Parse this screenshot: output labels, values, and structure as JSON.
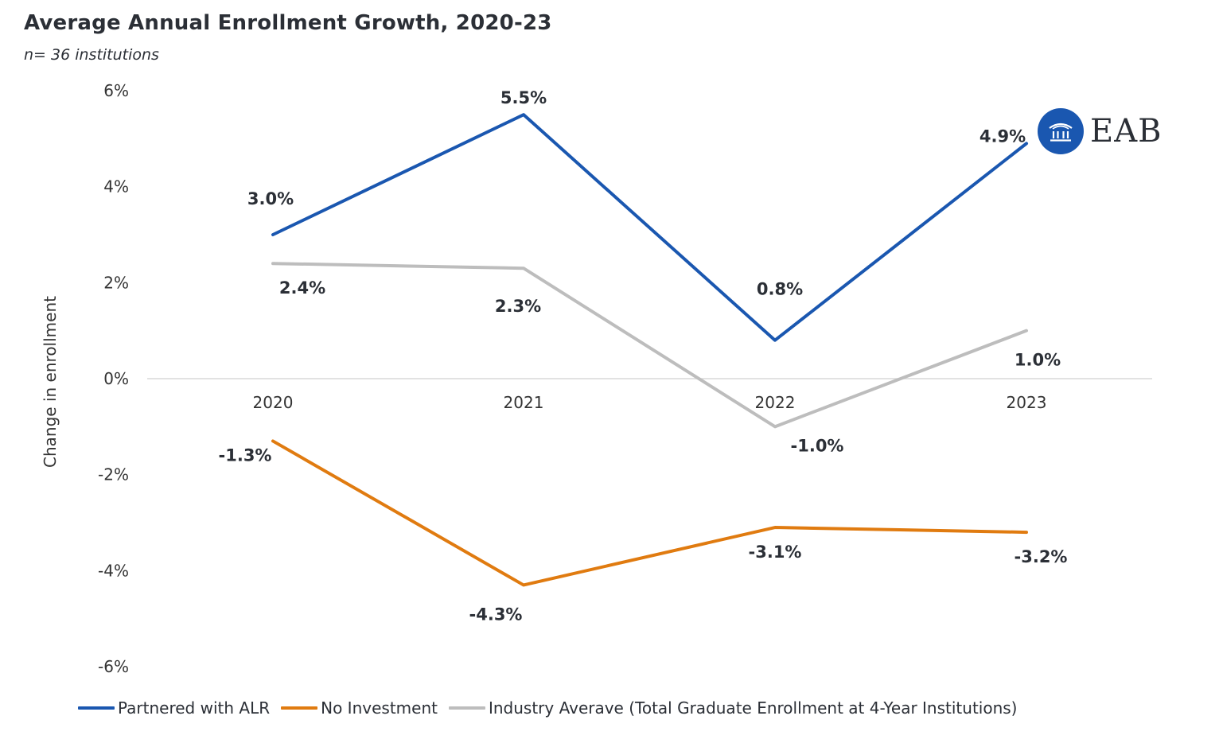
{
  "title": "Average Annual Enrollment Growth, 2020-23",
  "subtitle": "n= 36 institutions",
  "logo": {
    "text": "EAB",
    "icon": "university-building-icon",
    "color": "#1a57b0"
  },
  "chart_data": {
    "type": "line",
    "title": "Average Annual Enrollment Growth, 2020-23",
    "subtitle": "n= 36 institutions",
    "xlabel": "",
    "ylabel": "Change in enrollment",
    "categories": [
      "2020",
      "2021",
      "2022",
      "2023"
    ],
    "yticks": [
      "6%",
      "4%",
      "2%",
      "0%",
      "-2%",
      "-4%",
      "-6%"
    ],
    "ytick_values": [
      6,
      4,
      2,
      0,
      -2,
      -4,
      -6
    ],
    "ylim": [
      -6,
      6
    ],
    "grid": false,
    "legend_position": "bottom",
    "series": [
      {
        "name": "Partnered with ALR",
        "color": "#1a57b0",
        "values": [
          3.0,
          5.5,
          0.8,
          4.9
        ],
        "labels": [
          "3.0%",
          "5.5%",
          "0.8%",
          "4.9%"
        ]
      },
      {
        "name": "No Investment",
        "color": "#e07b10",
        "values": [
          -1.3,
          -4.3,
          -3.1,
          -3.2
        ],
        "labels": [
          "-1.3%",
          "-4.3%",
          "-3.1%",
          "-3.2%"
        ]
      },
      {
        "name": "Industry Averave (Total Graduate Enrollment at 4-Year Institutions)",
        "color": "#bdbdbd",
        "values": [
          2.4,
          2.3,
          -1.0,
          1.0
        ],
        "labels": [
          "2.4%",
          "2.3%",
          "-1.0%",
          "1.0%"
        ]
      }
    ]
  }
}
